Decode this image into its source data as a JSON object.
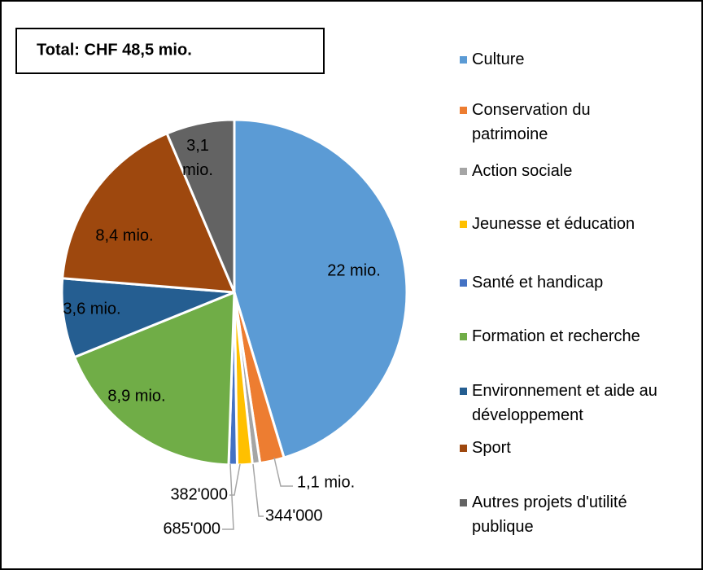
{
  "chart_data": {
    "type": "pie",
    "title": "Total: CHF 48,5 mio.",
    "categories": [
      "Culture",
      "Conservation du patrimoine",
      "Action sociale",
      "Jeunesse et éducation",
      "Santé et handicap",
      "Formation et recherche",
      "Environnement et aide au développement",
      "Sport",
      "Autres projets d'utilité publique"
    ],
    "values": [
      22000000,
      1100000,
      344000,
      685000,
      382000,
      8900000,
      3600000,
      8400000,
      3100000
    ],
    "value_labels": [
      "22 mio.",
      "1,1 mio.",
      "344'000",
      "685'000",
      "382'000",
      "8,9 mio.",
      "3,6 mio.",
      "8,4 mio.",
      "3,1 mio."
    ],
    "colors": [
      "#5b9bd5",
      "#ed7d31",
      "#a5a5a5",
      "#ffc000",
      "#4472c4",
      "#70ad47",
      "#255e91",
      "#9e480e",
      "#636363"
    ],
    "legend": "right"
  }
}
